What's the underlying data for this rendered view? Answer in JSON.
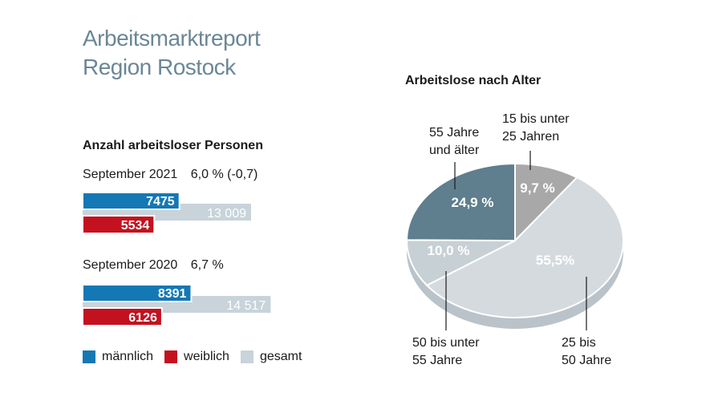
{
  "title": {
    "line1": "Arbeitsmarktreport",
    "line2": "Region Rostock"
  },
  "colors": {
    "maennlich": "#1478b4",
    "weiblich": "#c4111f",
    "gesamt": "#c8d3da",
    "slice_55plus": "#5f7e8e",
    "slice_15_25": "#a8a8a8",
    "slice_25_50": "#d5dade",
    "slice_50_55": "#c7d0d5"
  },
  "chart_data": [
    {
      "type": "bar",
      "title": "Anzahl arbeitsloser Personen",
      "groups": [
        {
          "period": "September 2021",
          "rate": "6,0 % (-0,7)",
          "maennlich": 7475,
          "weiblich": 5534,
          "gesamt": 13009,
          "labels": {
            "maennlich": "7475",
            "weiblich": "5534",
            "gesamt": "13 009"
          }
        },
        {
          "period": "September 2020",
          "rate": "6,7 %",
          "maennlich": 8391,
          "weiblich": 6126,
          "gesamt": 14517,
          "labels": {
            "maennlich": "8391",
            "weiblich": "6126",
            "gesamt": "14 517"
          }
        }
      ],
      "legend": [
        "männlich",
        "weiblich",
        "gesamt"
      ]
    },
    {
      "type": "pie",
      "title": "Arbeitslose nach Alter",
      "slices": [
        {
          "name": "15 bis unter 25 Jahren",
          "lines": [
            "15 bis unter",
            "25 Jahren"
          ],
          "value": 9.7,
          "label": "9,7 %"
        },
        {
          "name": "25 bis 50 Jahre",
          "lines": [
            "25 bis",
            "50 Jahre"
          ],
          "value": 55.5,
          "label": "55,5%"
        },
        {
          "name": "50 bis unter 55 Jahre",
          "lines": [
            "50 bis unter",
            "55 Jahre"
          ],
          "value": 10.0,
          "label": "10,0 %"
        },
        {
          "name": "55 Jahre und älter",
          "lines": [
            "55 Jahre",
            "und älter"
          ],
          "value": 24.9,
          "label": "24,9 %"
        }
      ]
    }
  ]
}
